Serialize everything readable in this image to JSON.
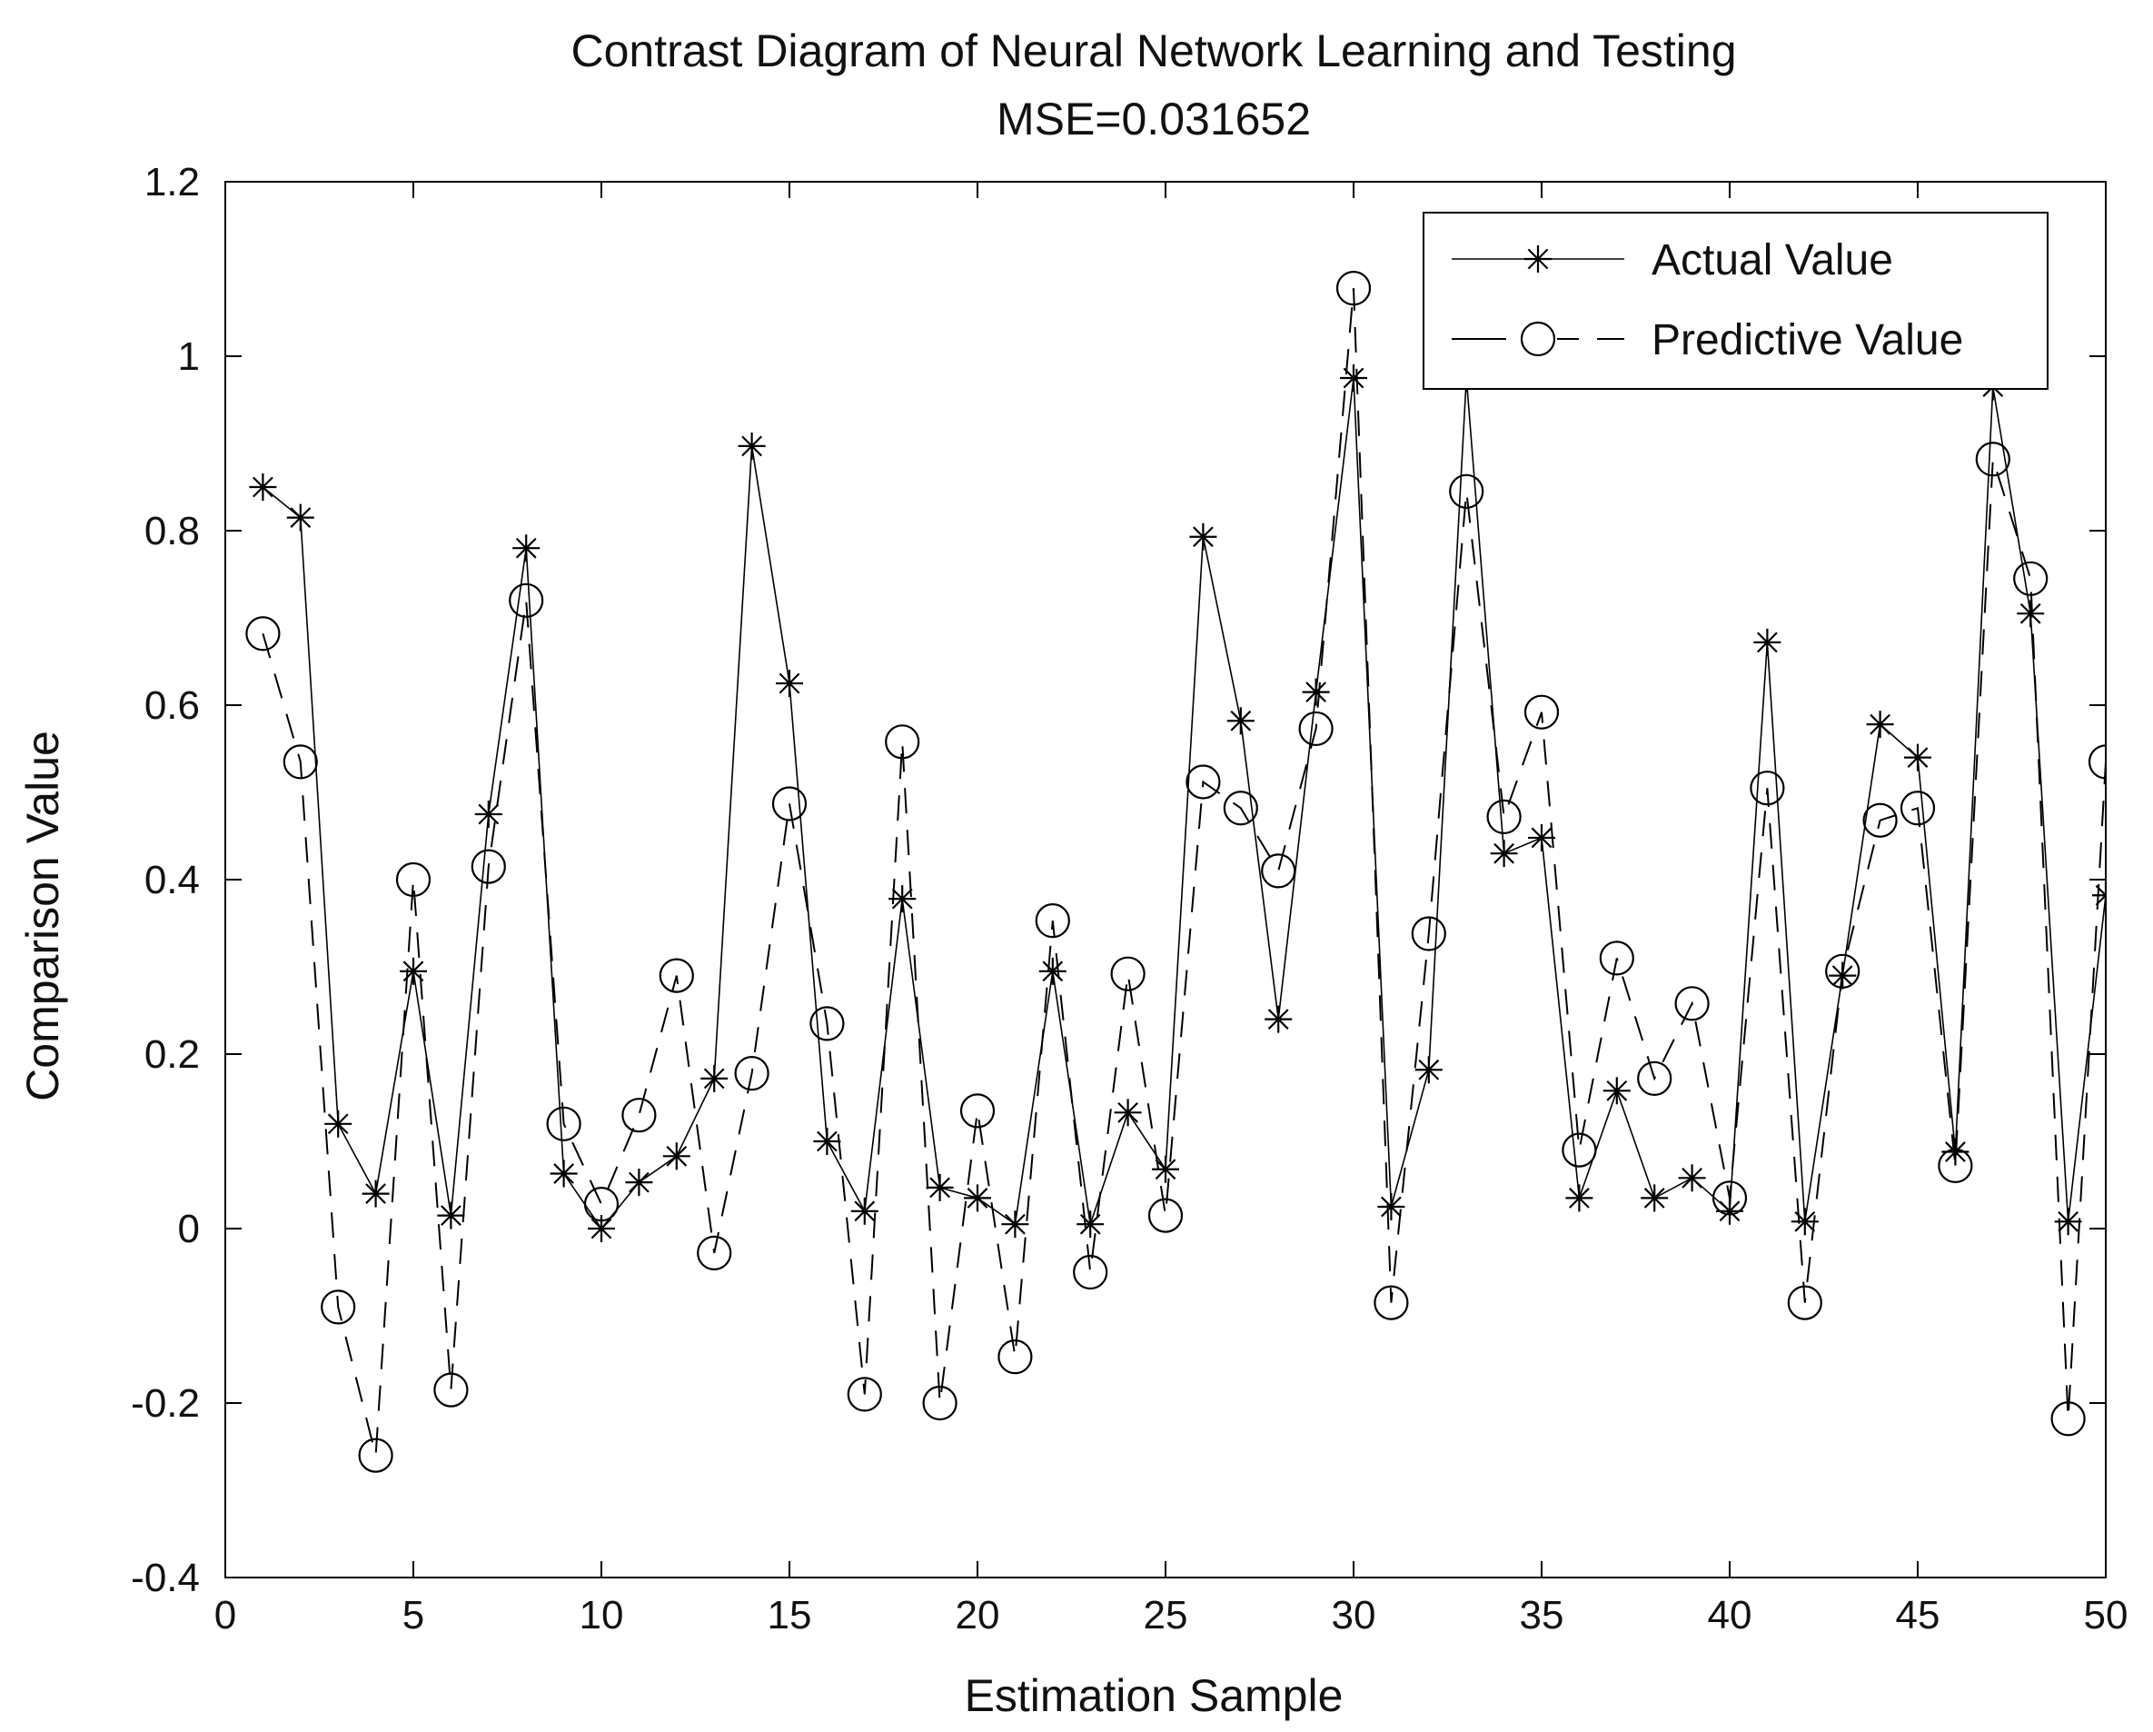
{
  "chart_data": {
    "type": "line",
    "title": "Contrast Diagram of Neural Network Learning and Testing",
    "subtitle": "MSE=0.031652",
    "xlabel": "Estimation Sample",
    "ylabel": "Comparison Value",
    "xlim": [
      0,
      50
    ],
    "ylim": [
      -0.4,
      1.2
    ],
    "xticks": [
      "0",
      "5",
      "10",
      "15",
      "20",
      "25",
      "30",
      "35",
      "40",
      "45",
      "50"
    ],
    "yticks": [
      "-0.4",
      "-0.2",
      "0",
      "0.2",
      "0.4",
      "0.6",
      "0.8",
      "1",
      "1.2"
    ],
    "grid": false,
    "legend_position": "top-right",
    "x": [
      1,
      2,
      3,
      4,
      5,
      6,
      7,
      8,
      9,
      10,
      11,
      12,
      13,
      14,
      15,
      16,
      17,
      18,
      19,
      20,
      21,
      22,
      23,
      24,
      25,
      26,
      27,
      28,
      29,
      30,
      31,
      32,
      33,
      34,
      35,
      36,
      37,
      38,
      39,
      40,
      41,
      42,
      43,
      44,
      45,
      46,
      47,
      48,
      49,
      50
    ],
    "series": [
      {
        "name": "Actual Value",
        "marker": "asterisk",
        "line": "solid",
        "color": "#000000",
        "values": [
          0.85,
          0.815,
          0.12,
          0.04,
          0.295,
          0.015,
          0.475,
          0.78,
          0.063,
          0.0,
          0.053,
          0.083,
          0.172,
          0.897,
          0.625,
          0.1,
          0.02,
          0.378,
          0.047,
          0.035,
          0.005,
          0.295,
          0.005,
          0.133,
          0.068,
          0.793,
          0.582,
          0.24,
          0.615,
          0.975,
          0.025,
          0.182,
          0.975,
          0.43,
          0.448,
          0.035,
          0.158,
          0.035,
          0.058,
          0.02,
          0.672,
          0.008,
          0.29,
          0.578,
          0.54,
          0.088,
          0.965,
          0.705,
          0.008,
          0.382
        ]
      },
      {
        "name": "Predictive Value",
        "marker": "circle",
        "line": "dashed",
        "color": "#000000",
        "values": [
          0.682,
          0.535,
          -0.09,
          -0.26,
          0.4,
          -0.185,
          0.415,
          0.72,
          0.12,
          0.028,
          0.13,
          0.29,
          -0.028,
          0.178,
          0.487,
          0.235,
          -0.19,
          0.558,
          -0.2,
          0.135,
          -0.147,
          0.353,
          -0.05,
          0.292,
          0.015,
          0.512,
          0.482,
          0.41,
          0.573,
          1.078,
          -0.085,
          0.338,
          0.845,
          0.472,
          0.592,
          0.09,
          0.31,
          0.172,
          0.258,
          0.035,
          0.505,
          -0.085,
          0.295,
          0.468,
          0.482,
          0.072,
          0.882,
          0.745,
          -0.218,
          0.535
        ]
      }
    ]
  }
}
